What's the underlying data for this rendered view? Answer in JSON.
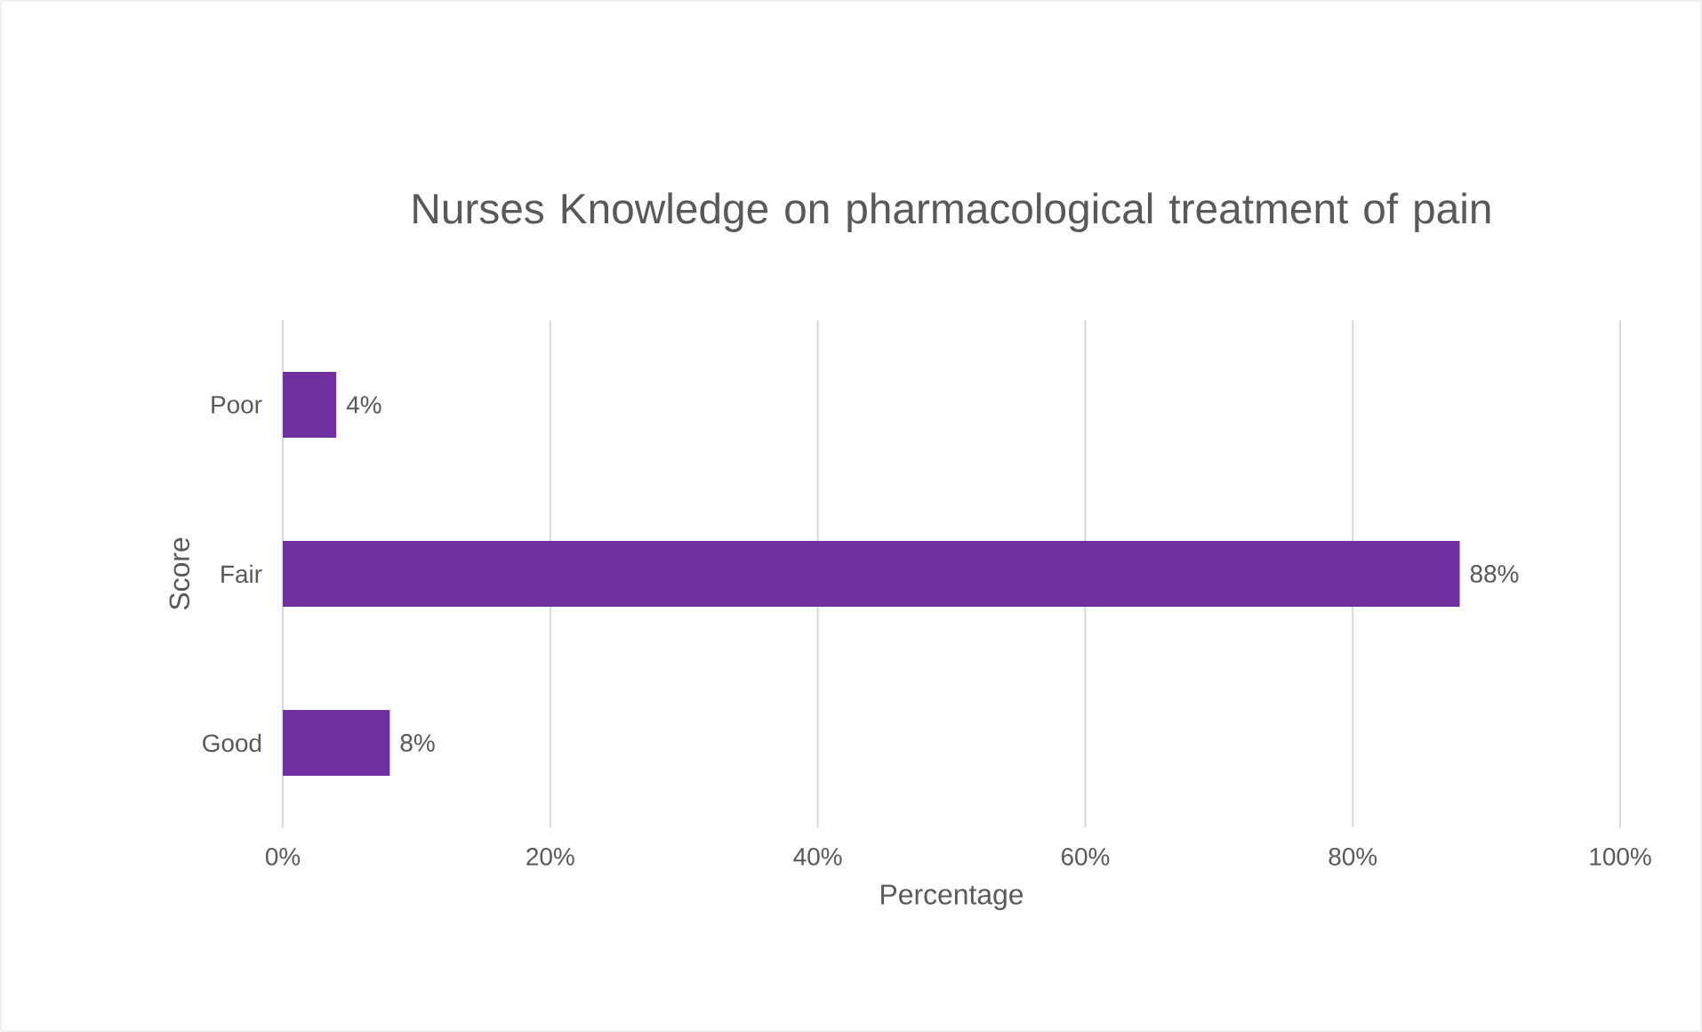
{
  "chart_data": {
    "type": "bar",
    "orientation": "horizontal",
    "title": "Nurses Knowledge on pharmacological treatment of pain",
    "xlabel": "Percentage",
    "ylabel": "Score",
    "categories": [
      "Poor",
      "Fair",
      "Good"
    ],
    "values": [
      4,
      88,
      8
    ],
    "value_labels": [
      "4%",
      "88%",
      "8%"
    ],
    "color": "#7030a0",
    "xlim": [
      0,
      100
    ],
    "xticks": [
      {
        "value": 0,
        "label": "0%"
      },
      {
        "value": 20,
        "label": "20%"
      },
      {
        "value": 40,
        "label": "40%"
      },
      {
        "value": 60,
        "label": "60%"
      },
      {
        "value": 80,
        "label": "80%"
      },
      {
        "value": 100,
        "label": "100%"
      }
    ],
    "grid": "x"
  }
}
